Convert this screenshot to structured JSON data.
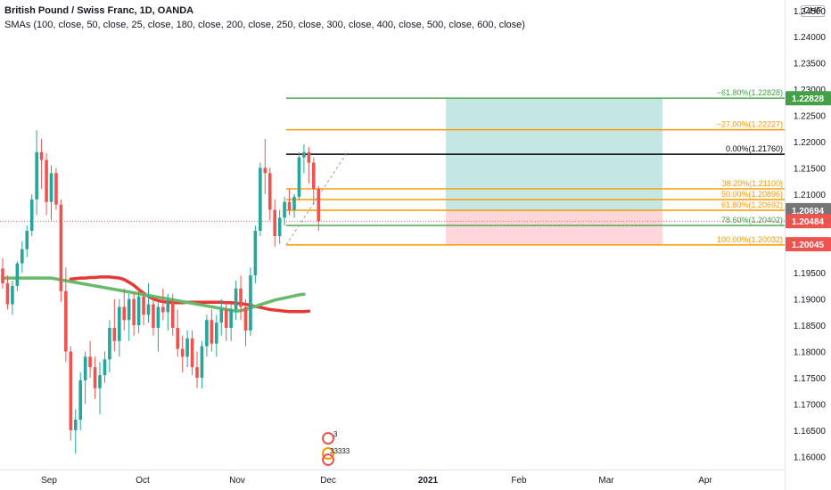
{
  "header": {
    "title": "British Pound / Swiss Franc, 1D, OANDA",
    "smas": "SMAs (100, close, 50, close, 25, close, 180, close, 200, close, 250, close, 300, close, 400, close, 500, close, 600, close)",
    "currency": "CHF"
  },
  "chart_data": {
    "type": "candlestick",
    "title": "British Pound / Swiss Franc, 1D, OANDA",
    "ylim": [
      1.1575,
      1.247
    ],
    "y_ticks": [
      "1.24500",
      "1.24000",
      "1.23500",
      "1.23000",
      "1.22500",
      "1.22000",
      "1.21500",
      "1.21000",
      "1.20500",
      "1.20000",
      "1.19500",
      "1.19000",
      "1.18500",
      "1.18000",
      "1.17500",
      "1.17000",
      "1.16500",
      "1.16000"
    ],
    "x_ticks": [
      "Sep",
      "Oct",
      "Nov",
      "Dec",
      "2021",
      "Feb",
      "Mar",
      "Apr"
    ],
    "colors": {
      "up": "#26a69a",
      "down": "#ef5350",
      "fib_orange": "#ff9800",
      "fib_green": "#43a047",
      "fib_black": "#000000",
      "sma_red": "#e53935",
      "sma_green": "#66bb6a",
      "target_zone": "#b2dfdb",
      "stop_zone": "#ffcdd2",
      "current_price": "#ef5350"
    },
    "candles": [
      {
        "o": 1.1958,
        "h": 1.1978,
        "l": 1.192,
        "c": 1.193
      },
      {
        "o": 1.193,
        "h": 1.1945,
        "l": 1.188,
        "c": 1.189
      },
      {
        "o": 1.189,
        "h": 1.1935,
        "l": 1.187,
        "c": 1.1925
      },
      {
        "o": 1.1925,
        "h": 1.1972,
        "l": 1.1915,
        "c": 1.1968
      },
      {
        "o": 1.1968,
        "h": 1.201,
        "l": 1.195,
        "c": 1.1995
      },
      {
        "o": 1.1995,
        "h": 1.204,
        "l": 1.198,
        "c": 1.203
      },
      {
        "o": 1.203,
        "h": 1.21,
        "l": 1.202,
        "c": 1.209
      },
      {
        "o": 1.209,
        "h": 1.2222,
        "l": 1.206,
        "c": 1.218
      },
      {
        "o": 1.218,
        "h": 1.2205,
        "l": 1.211,
        "c": 1.2165
      },
      {
        "o": 1.2165,
        "h": 1.2178,
        "l": 1.206,
        "c": 1.2085
      },
      {
        "o": 1.2085,
        "h": 1.2155,
        "l": 1.205,
        "c": 1.214
      },
      {
        "o": 1.214,
        "h": 1.215,
        "l": 1.207,
        "c": 1.208
      },
      {
        "o": 1.208,
        "h": 1.209,
        "l": 1.1895,
        "c": 1.1915
      },
      {
        "o": 1.1915,
        "h": 1.196,
        "l": 1.178,
        "c": 1.18
      },
      {
        "o": 1.18,
        "h": 1.181,
        "l": 1.163,
        "c": 1.165
      },
      {
        "o": 1.165,
        "h": 1.169,
        "l": 1.1605,
        "c": 1.167
      },
      {
        "o": 1.167,
        "h": 1.176,
        "l": 1.165,
        "c": 1.1745
      },
      {
        "o": 1.1745,
        "h": 1.18,
        "l": 1.17,
        "c": 1.179
      },
      {
        "o": 1.179,
        "h": 1.182,
        "l": 1.175,
        "c": 1.177
      },
      {
        "o": 1.177,
        "h": 1.179,
        "l": 1.171,
        "c": 1.173
      },
      {
        "o": 1.173,
        "h": 1.178,
        "l": 1.168,
        "c": 1.1755
      },
      {
        "o": 1.1755,
        "h": 1.18,
        "l": 1.174,
        "c": 1.1785
      },
      {
        "o": 1.1785,
        "h": 1.186,
        "l": 1.176,
        "c": 1.1845
      },
      {
        "o": 1.1845,
        "h": 1.19,
        "l": 1.18,
        "c": 1.182
      },
      {
        "o": 1.182,
        "h": 1.19,
        "l": 1.179,
        "c": 1.1885
      },
      {
        "o": 1.1885,
        "h": 1.192,
        "l": 1.184,
        "c": 1.186
      },
      {
        "o": 1.186,
        "h": 1.191,
        "l": 1.182,
        "c": 1.19
      },
      {
        "o": 1.19,
        "h": 1.191,
        "l": 1.183,
        "c": 1.185
      },
      {
        "o": 1.185,
        "h": 1.192,
        "l": 1.1835,
        "c": 1.1905
      },
      {
        "o": 1.1905,
        "h": 1.1915,
        "l": 1.185,
        "c": 1.187
      },
      {
        "o": 1.187,
        "h": 1.193,
        "l": 1.1855,
        "c": 1.189
      },
      {
        "o": 1.189,
        "h": 1.1905,
        "l": 1.183,
        "c": 1.1845
      },
      {
        "o": 1.1845,
        "h": 1.19,
        "l": 1.18,
        "c": 1.1885
      },
      {
        "o": 1.1885,
        "h": 1.192,
        "l": 1.186,
        "c": 1.1875
      },
      {
        "o": 1.1875,
        "h": 1.191,
        "l": 1.184,
        "c": 1.1895
      },
      {
        "o": 1.1895,
        "h": 1.191,
        "l": 1.183,
        "c": 1.1845
      },
      {
        "o": 1.1845,
        "h": 1.188,
        "l": 1.179,
        "c": 1.1805
      },
      {
        "o": 1.1805,
        "h": 1.183,
        "l": 1.176,
        "c": 1.179
      },
      {
        "o": 1.179,
        "h": 1.184,
        "l": 1.177,
        "c": 1.1825
      },
      {
        "o": 1.1825,
        "h": 1.184,
        "l": 1.1755,
        "c": 1.177
      },
      {
        "o": 1.177,
        "h": 1.18,
        "l": 1.173,
        "c": 1.175
      },
      {
        "o": 1.175,
        "h": 1.182,
        "l": 1.173,
        "c": 1.181
      },
      {
        "o": 1.181,
        "h": 1.187,
        "l": 1.179,
        "c": 1.186
      },
      {
        "o": 1.186,
        "h": 1.188,
        "l": 1.18,
        "c": 1.1815
      },
      {
        "o": 1.1815,
        "h": 1.187,
        "l": 1.179,
        "c": 1.1855
      },
      {
        "o": 1.1855,
        "h": 1.19,
        "l": 1.183,
        "c": 1.188
      },
      {
        "o": 1.188,
        "h": 1.1895,
        "l": 1.182,
        "c": 1.1845
      },
      {
        "o": 1.1845,
        "h": 1.189,
        "l": 1.182,
        "c": 1.188
      },
      {
        "o": 1.188,
        "h": 1.1935,
        "l": 1.186,
        "c": 1.192
      },
      {
        "o": 1.192,
        "h": 1.1945,
        "l": 1.186,
        "c": 1.1885
      },
      {
        "o": 1.1885,
        "h": 1.19,
        "l": 1.181,
        "c": 1.184
      },
      {
        "o": 1.184,
        "h": 1.196,
        "l": 1.183,
        "c": 1.1945
      },
      {
        "o": 1.1945,
        "h": 1.204,
        "l": 1.193,
        "c": 1.203
      },
      {
        "o": 1.203,
        "h": 1.216,
        "l": 1.202,
        "c": 1.215
      },
      {
        "o": 1.215,
        "h": 1.2205,
        "l": 1.21,
        "c": 1.214
      },
      {
        "o": 1.214,
        "h": 1.215,
        "l": 1.205,
        "c": 1.207
      },
      {
        "o": 1.207,
        "h": 1.209,
        "l": 1.2,
        "c": 1.202
      },
      {
        "o": 1.202,
        "h": 1.207,
        "l": 1.2005,
        "c": 1.2055
      },
      {
        "o": 1.2055,
        "h": 1.2095,
        "l": 1.204,
        "c": 1.2085
      },
      {
        "o": 1.2085,
        "h": 1.211,
        "l": 1.206,
        "c": 1.207
      },
      {
        "o": 1.207,
        "h": 1.21,
        "l": 1.2055,
        "c": 1.2095
      },
      {
        "o": 1.2095,
        "h": 1.218,
        "l": 1.209,
        "c": 1.217
      },
      {
        "o": 1.217,
        "h": 1.2195,
        "l": 1.214,
        "c": 1.218
      },
      {
        "o": 1.218,
        "h": 1.219,
        "l": 1.212,
        "c": 1.216
      },
      {
        "o": 1.216,
        "h": 1.217,
        "l": 1.208,
        "c": 1.211
      },
      {
        "o": 1.211,
        "h": 1.2115,
        "l": 1.203,
        "c": 1.2048
      }
    ],
    "sma_red": [
      1.1938,
      1.1939,
      1.194,
      1.194,
      1.1941,
      1.1941,
      1.1942,
      1.1942,
      1.1942,
      1.1941,
      1.194,
      1.1937,
      1.1932,
      1.1926,
      1.1918,
      1.1911,
      1.1905,
      1.19,
      1.1897,
      1.1895,
      1.1894,
      1.1893,
      1.1893,
      1.1893,
      1.1894,
      1.1894,
      1.1894,
      1.1894,
      1.1894,
      1.1894,
      1.1894,
      1.1894,
      1.1893,
      1.1893,
      1.1892,
      1.1891,
      1.189,
      1.1888,
      1.1886,
      1.1884,
      1.1882,
      1.188,
      1.1879,
      1.1878,
      1.1877,
      1.1876,
      1.1876,
      1.1876,
      1.1876,
      1.1877
    ],
    "sma_green": [
      1.194,
      1.194,
      1.194,
      1.194,
      1.194,
      1.194,
      1.194,
      1.194,
      1.194,
      1.194,
      1.194,
      null,
      null,
      null,
      null,
      null,
      null,
      null,
      null,
      null,
      null,
      null,
      null,
      null,
      null,
      null,
      null,
      null,
      null,
      null,
      null,
      null,
      null,
      null,
      null,
      null,
      null,
      null,
      null,
      null,
      null,
      null,
      null,
      null,
      null,
      null,
      null,
      null,
      1.1877,
      1.1878,
      1.188,
      1.1883,
      1.1886,
      1.1889,
      1.1892,
      1.1895,
      1.1898,
      1.19,
      1.1902,
      1.1904,
      1.1906,
      1.1908,
      1.1909
    ],
    "fib_levels": [
      {
        "label": "−61.80%(1.22828)",
        "value": 1.22828,
        "color": "#43a047"
      },
      {
        "label": "−27.00%(1.22227)",
        "value": 1.22227,
        "color": "#ff9800"
      },
      {
        "label": "0.00%(1.21760)",
        "value": 1.2176,
        "color": "#000000"
      },
      {
        "label": "38.20%(1.21100)",
        "value": 1.211,
        "color": "#ff9800"
      },
      {
        "label": "50.00%(1.20896)",
        "value": 1.20896,
        "color": "#ff9800"
      },
      {
        "label": "61.80%(1.20692)",
        "value": 1.20692,
        "color": "#ff9800"
      },
      {
        "label": "78.60%(1.20402)",
        "value": 1.20402,
        "color": "#43a047"
      },
      {
        "label": "100.00%(1.20032)",
        "value": 1.20032,
        "color": "#ff9800"
      }
    ],
    "price_tags": [
      {
        "label": "1.22828",
        "value": 1.22828,
        "bg": "#43a047",
        "fg": "#ffffff"
      },
      {
        "label": "1.20694",
        "value": 1.20694,
        "bg": "#757575",
        "fg": "#ffffff"
      },
      {
        "label": "1.20484",
        "value": 1.20484,
        "bg": "#ef5350",
        "fg": "#ffffff"
      },
      {
        "label": "1.20045",
        "value": 1.20045,
        "bg": "#ef5350",
        "fg": "#ffffff"
      }
    ],
    "position": {
      "entry": 1.20694,
      "target": 1.22828,
      "stop": 1.20045
    },
    "current_price": 1.20484,
    "event_labels": [
      "3",
      "33333"
    ]
  }
}
